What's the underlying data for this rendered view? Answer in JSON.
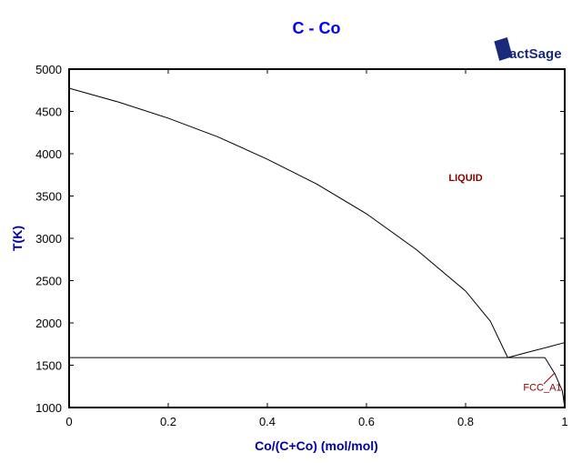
{
  "chart_data": {
    "type": "line",
    "title": "C - Co",
    "xlabel": "Co/(C+Co) (mol/mol)",
    "ylabel": "T(K)",
    "xlim": [
      0,
      1
    ],
    "ylim": [
      1000,
      5000
    ],
    "x_ticks": [
      "0",
      "0.2",
      "0.4",
      "0.6",
      "0.8",
      "1"
    ],
    "y_ticks": [
      "1000",
      "1500",
      "2000",
      "2500",
      "3000",
      "3500",
      "4000",
      "4500",
      "5000"
    ],
    "grid": false,
    "logo": "FactSage",
    "region_labels": [
      {
        "text": "LIQUID",
        "x": 0.8,
        "y": 3680,
        "color": "#8b0000"
      },
      {
        "text": "FCC_A1",
        "x": 0.955,
        "y": 1200,
        "color": "#8b0000"
      }
    ],
    "series": [
      {
        "values": [
          [
            0,
            4774
          ],
          [
            0.1,
            4610
          ],
          [
            0.2,
            4420
          ],
          [
            0.3,
            4200
          ],
          [
            0.4,
            3935
          ],
          [
            0.5,
            3640
          ],
          [
            0.6,
            3290
          ],
          [
            0.7,
            2870
          ],
          [
            0.8,
            2377
          ],
          [
            0.85,
            2020
          ],
          [
            0.885,
            1590
          ]
        ]
      },
      {
        "values": [
          [
            0.885,
            1590
          ],
          [
            0.93,
            1660
          ],
          [
            0.97,
            1720
          ],
          [
            1,
            1768
          ]
        ]
      },
      {
        "values": [
          [
            0,
            1590
          ],
          [
            0.96,
            1590
          ]
        ]
      },
      {
        "values": [
          [
            0.96,
            1590
          ],
          [
            0.98,
            1400
          ],
          [
            0.995,
            1200
          ],
          [
            1,
            1000
          ]
        ]
      }
    ],
    "colors": {
      "title": "#0000ff",
      "axis_label": "#0000a0",
      "line": "#000000"
    }
  }
}
